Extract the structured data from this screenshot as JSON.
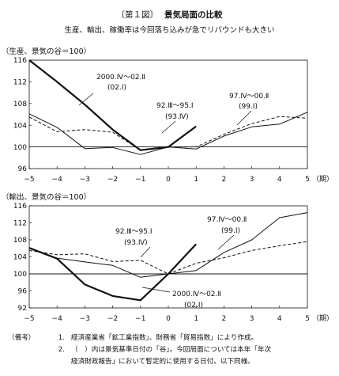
{
  "figure": {
    "number": "〔第１図〕",
    "title": "景気局面の比較",
    "subtitle": "生産、輸出、稼働率は今回落ち込みが急でリバウンドも大きい"
  },
  "chart_data": [
    {
      "type": "line",
      "ylabel": "（生産、景気の谷＝100）",
      "xlabel": "（期）",
      "ylim": [
        96,
        116
      ],
      "yticks": [
        96,
        100,
        104,
        108,
        112,
        116
      ],
      "xlim": [
        -5,
        5
      ],
      "xticks": [
        -5,
        -4,
        -3,
        -2,
        -1,
        0,
        1,
        2,
        3,
        4,
        5
      ],
      "xtick_labels": [
        "−5",
        "−4",
        "−3",
        "−2",
        "−1",
        "0",
        "1",
        "2",
        "3",
        "4",
        "5"
      ],
      "grid": false,
      "baseline": 100,
      "series": [
        {
          "name": "2000.Ⅳ〜02.Ⅱ",
          "sub": "(02.Ⅰ)",
          "style": "thick",
          "x": [
            -5,
            -4,
            -3,
            -2,
            -1,
            0,
            1
          ],
          "y": [
            116,
            112,
            107.8,
            103.2,
            99.4,
            100,
            103.8
          ]
        },
        {
          "name": "92.Ⅲ〜95.Ⅰ",
          "sub": "(93.Ⅳ)",
          "style": "thin",
          "x": [
            -5,
            -4,
            -3,
            -2,
            -1,
            0,
            1,
            2,
            3,
            4,
            5
          ],
          "y": [
            106.1,
            103.6,
            99.7,
            99.9,
            98.6,
            100,
            99.6,
            102,
            103.7,
            104.2,
            106.4
          ]
        },
        {
          "name": "97.Ⅳ〜00.Ⅱ",
          "sub": "(99.Ⅰ)",
          "style": "dashed",
          "x": [
            -5,
            -4,
            -3,
            -2,
            -1,
            0,
            1,
            2,
            3,
            4,
            5
          ],
          "y": [
            105.5,
            102.8,
            103.2,
            102.7,
            99.4,
            100,
            100,
            102.3,
            104.3,
            105.6,
            105.3
          ]
        }
      ]
    },
    {
      "type": "line",
      "ylabel": "（輸出、景気の谷＝100）",
      "xlabel": "（期）",
      "ylim": [
        92,
        116
      ],
      "yticks": [
        92,
        96,
        100,
        104,
        108,
        112,
        116
      ],
      "xlim": [
        -5,
        5
      ],
      "xticks": [
        -5,
        -4,
        -3,
        -2,
        -1,
        0,
        1,
        2,
        3,
        4,
        5
      ],
      "xtick_labels": [
        "−5",
        "−4",
        "−3",
        "−2",
        "−1",
        "0",
        "1",
        "2",
        "3",
        "4",
        "5"
      ],
      "grid": false,
      "baseline": 100,
      "series": [
        {
          "name": "2000.Ⅳ〜02.Ⅱ",
          "sub": "(02.Ⅰ)",
          "style": "thick",
          "x": [
            -5,
            -4,
            -3,
            -2,
            -1,
            0,
            1
          ],
          "y": [
            106.1,
            103.6,
            97.5,
            94.8,
            93.8,
            100,
            107
          ]
        },
        {
          "name": "92.Ⅲ〜95.Ⅰ",
          "sub": "(93.Ⅳ)",
          "style": "thin",
          "x": [
            -5,
            -4,
            -3,
            -2,
            -1,
            0,
            1,
            2,
            3,
            4,
            5
          ],
          "y": [
            106,
            103.7,
            102.8,
            102,
            99.2,
            100,
            100.8,
            105,
            108,
            113.2,
            114.4
          ]
        },
        {
          "name": "97.Ⅳ〜00.Ⅱ",
          "sub": "(99.Ⅰ)",
          "style": "dashed",
          "x": [
            -5,
            -4,
            -3,
            -2,
            -1,
            0,
            1,
            2,
            3,
            4,
            5
          ],
          "y": [
            105.5,
            104.5,
            104.7,
            102.9,
            103.2,
            100,
            102.5,
            103.8,
            105.5,
            106.6,
            107.6
          ]
        }
      ]
    }
  ],
  "notes": {
    "label": "（備考）",
    "items": [
      {
        "num": "1.",
        "text": "経済産業省「鉱工業指数」、財務省「貿易指数」により作成。"
      },
      {
        "num": "2.",
        "text": "（　）内は景気基準日付の「谷」。今回局面については本年「年次"
      },
      {
        "num": "",
        "text": "経済財政報告」において暫定的に使用する日付。以下同様。"
      }
    ]
  }
}
